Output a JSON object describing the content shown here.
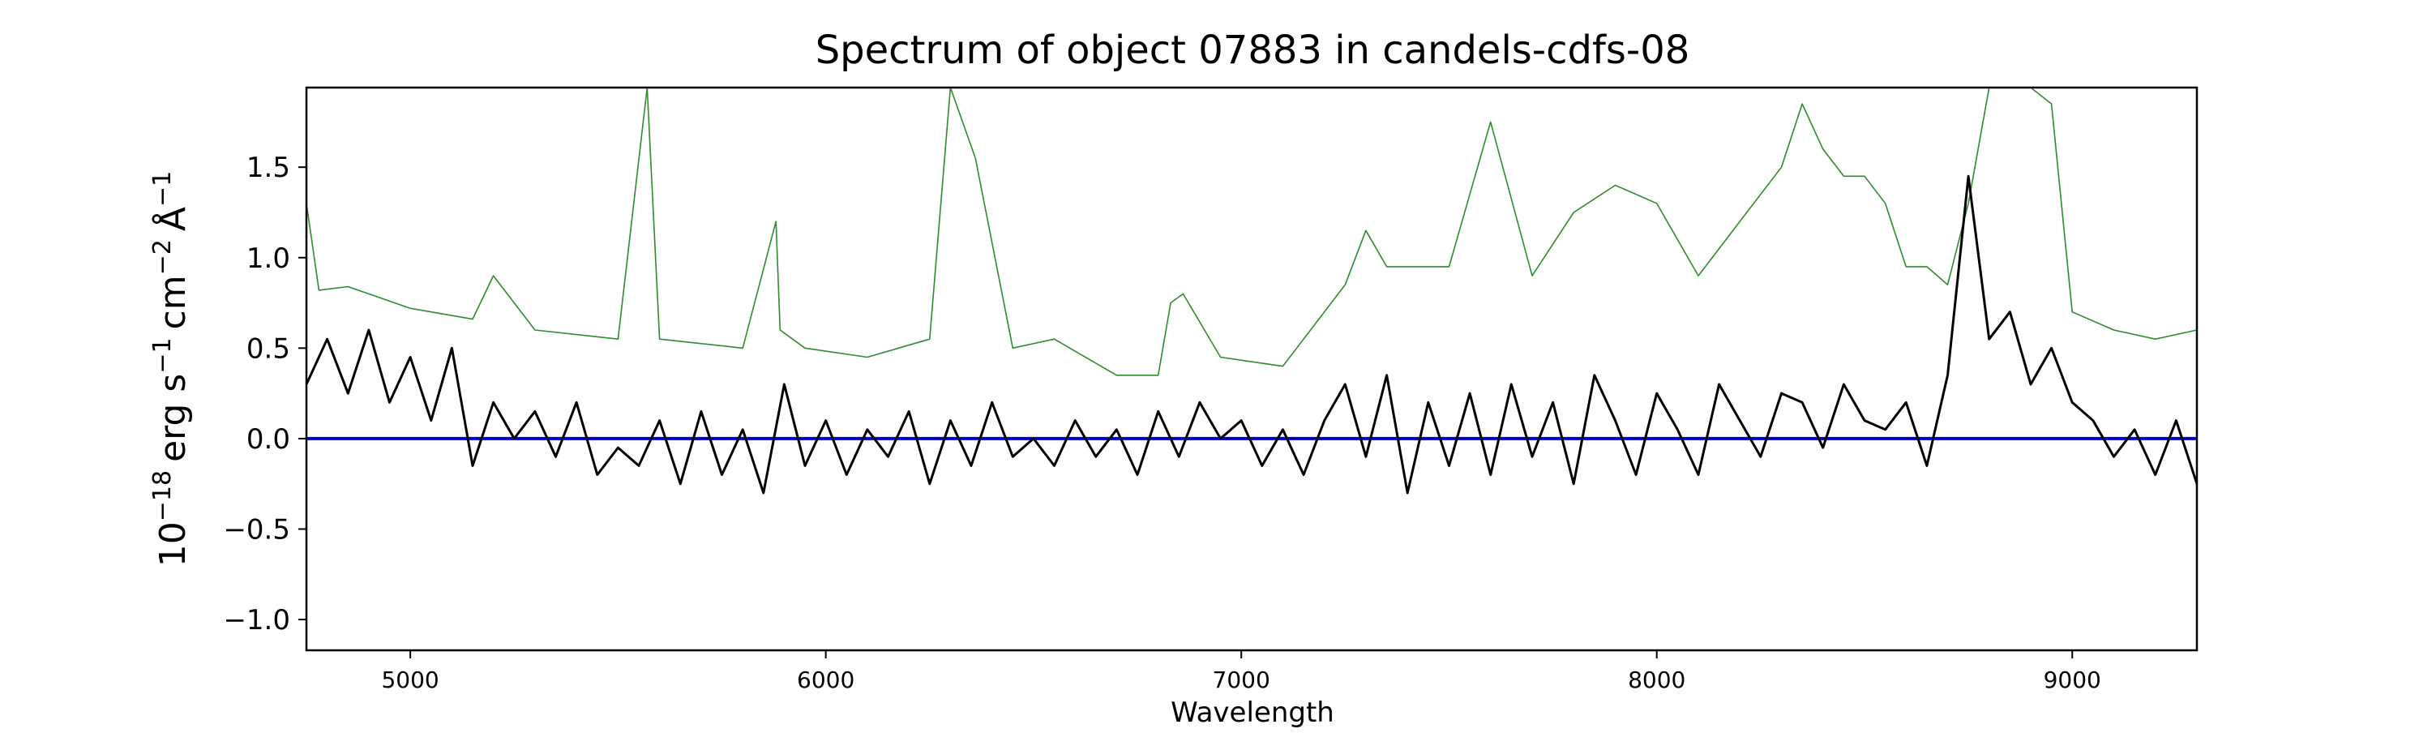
{
  "chart_data": {
    "type": "line",
    "title": "Spectrum of object 07883 in candels-cdfs-08",
    "xlabel": "Wavelength",
    "ylabel_base": "10",
    "ylabel_exp": "−18",
    "ylabel_unit1": "erg s",
    "ylabel_unit1_exp": "−1",
    "ylabel_unit2": "cm",
    "ylabel_unit2_exp": "−2",
    "ylabel_unit3": "Å",
    "ylabel_unit3_exp": "−1",
    "xlim": [
      4750,
      9300
    ],
    "ylim": [
      -1.17,
      1.94
    ],
    "xticks": [
      5000,
      6000,
      7000,
      8000,
      9000
    ],
    "xtick_labels": [
      "5000",
      "6000",
      "7000",
      "8000",
      "9000"
    ],
    "yticks": [
      -1.0,
      -0.5,
      0.0,
      0.5,
      1.0,
      1.5
    ],
    "ytick_labels": [
      "−1.0",
      "−0.5",
      "0.0",
      "0.5",
      "1.0",
      "1.5"
    ],
    "grid": false,
    "legend": "none",
    "colors": {
      "flux": "#000000",
      "sky": "#2e8b2e",
      "zero": "#0000cc"
    },
    "series": [
      {
        "role": "flux",
        "x": [
          4750,
          4800,
          4850,
          4900,
          4950,
          5000,
          5050,
          5100,
          5150,
          5200,
          5250,
          5300,
          5350,
          5400,
          5450,
          5500,
          5550,
          5600,
          5650,
          5700,
          5750,
          5800,
          5850,
          5900,
          5950,
          6000,
          6050,
          6100,
          6150,
          6200,
          6250,
          6300,
          6350,
          6400,
          6450,
          6500,
          6550,
          6600,
          6650,
          6700,
          6750,
          6800,
          6850,
          6900,
          6950,
          7000,
          7050,
          7100,
          7150,
          7200,
          7250,
          7300,
          7350,
          7400,
          7450,
          7500,
          7550,
          7600,
          7650,
          7700,
          7750,
          7800,
          7850,
          7900,
          7950,
          8000,
          8050,
          8100,
          8150,
          8200,
          8250,
          8300,
          8350,
          8400,
          8450,
          8500,
          8550,
          8600,
          8650,
          8700,
          8750,
          8800,
          8850,
          8900,
          8950,
          9000,
          9050,
          9100,
          9150,
          9200,
          9250,
          9300
        ],
        "y": [
          0.3,
          0.55,
          0.25,
          0.6,
          0.2,
          0.45,
          0.1,
          0.5,
          -0.15,
          0.2,
          0.0,
          0.15,
          -0.1,
          0.2,
          -0.2,
          -0.05,
          -0.15,
          0.1,
          -0.25,
          0.15,
          -0.2,
          0.05,
          -0.3,
          0.3,
          -0.15,
          0.1,
          -0.2,
          0.05,
          -0.1,
          0.15,
          -0.25,
          0.1,
          -0.15,
          0.2,
          -0.1,
          0.0,
          -0.15,
          0.1,
          -0.1,
          0.05,
          -0.2,
          0.15,
          -0.1,
          0.2,
          0.0,
          0.1,
          -0.15,
          0.05,
          -0.2,
          0.1,
          0.3,
          -0.1,
          0.35,
          -0.3,
          0.2,
          -0.15,
          0.25,
          -0.2,
          0.3,
          -0.1,
          0.2,
          -0.25,
          0.35,
          0.1,
          -0.2,
          0.25,
          0.05,
          -0.2,
          0.3,
          0.1,
          -0.1,
          0.25,
          0.2,
          -0.05,
          0.3,
          0.1,
          0.05,
          0.2,
          -0.15,
          0.35,
          1.45,
          0.55,
          0.7,
          0.3,
          0.5,
          0.2,
          0.1,
          -0.1,
          0.05,
          -0.2,
          0.1,
          -0.25
        ]
      },
      {
        "role": "sky",
        "x": [
          4750,
          4780,
          4850,
          5000,
          5150,
          5200,
          5300,
          5500,
          5570,
          5600,
          5800,
          5880,
          5890,
          5950,
          6100,
          6250,
          6300,
          6360,
          6450,
          6550,
          6700,
          6800,
          6830,
          6860,
          6950,
          7100,
          7250,
          7300,
          7350,
          7500,
          7600,
          7700,
          7800,
          7900,
          8000,
          8100,
          8200,
          8300,
          8350,
          8400,
          8450,
          8500,
          8550,
          8600,
          8650,
          8700,
          8750,
          8800,
          8850,
          8900,
          8950,
          9000,
          9100,
          9200,
          9300
        ],
        "y": [
          1.3,
          0.82,
          0.84,
          0.72,
          0.66,
          0.9,
          0.6,
          0.55,
          1.94,
          0.55,
          0.5,
          1.2,
          0.6,
          0.5,
          0.45,
          0.55,
          1.94,
          1.55,
          0.5,
          0.55,
          0.35,
          0.35,
          0.75,
          0.8,
          0.45,
          0.4,
          0.85,
          1.15,
          0.95,
          0.95,
          1.75,
          0.9,
          1.25,
          1.4,
          1.3,
          0.9,
          1.2,
          1.5,
          1.85,
          1.6,
          1.45,
          1.45,
          1.3,
          0.95,
          0.95,
          0.85,
          1.3,
          1.94,
          1.94,
          1.94,
          1.85,
          0.7,
          0.6,
          0.55,
          0.6
        ]
      },
      {
        "role": "zero",
        "x": [
          4750,
          9300
        ],
        "y": [
          0.0,
          0.0
        ]
      }
    ]
  }
}
